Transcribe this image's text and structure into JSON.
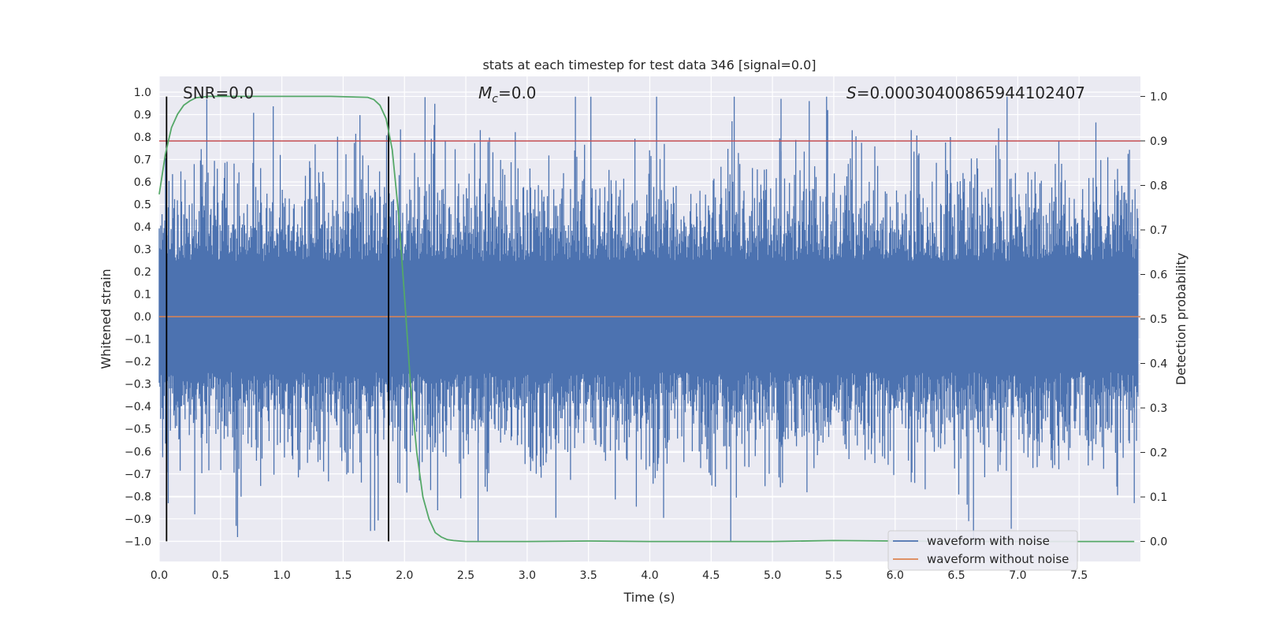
{
  "chart_data": {
    "type": "line",
    "title": "stats at each timestep for test data 346 [signal=0.0]",
    "xlabel": "Time (s)",
    "ylabel_left": "Whitened strain",
    "ylabel_right": "Detection probability",
    "xlim": [
      0.0,
      8.0
    ],
    "ylim_left": [
      -1.09,
      1.07
    ],
    "ylim_right": [
      -0.045,
      1.045
    ],
    "x_ticks": [
      "0.0",
      "0.5",
      "1.0",
      "1.5",
      "2.0",
      "2.5",
      "3.0",
      "3.5",
      "4.0",
      "4.5",
      "5.0",
      "5.5",
      "6.0",
      "6.5",
      "7.0",
      "7.5"
    ],
    "y_left_ticks": [
      "1.0",
      "0.9",
      "0.8",
      "0.7",
      "0.6",
      "0.5",
      "0.4",
      "0.3",
      "0.2",
      "0.1",
      "0.0",
      "-0.1",
      "-0.2",
      "-0.3",
      "-0.4",
      "-0.5",
      "-0.6",
      "-0.7",
      "-0.8",
      "-0.9",
      "-1.0"
    ],
    "y_right_ticks": [
      "1.0",
      "0.9",
      "0.8",
      "0.7",
      "0.6",
      "0.5",
      "0.4",
      "0.3",
      "0.2",
      "0.1",
      "0.0"
    ],
    "annotations": {
      "snr": "SNR=0.0",
      "mc": "M",
      "mc_sub": "c",
      "mc_value": "=0.0",
      "s_sym": "S",
      "s_value": "=0.00030400865944102407"
    },
    "threshold_right": 0.9,
    "vertical_markers_x": [
      0.06,
      1.87
    ],
    "series": [
      {
        "name": "waveform with noise",
        "color": "#4c72b0",
        "kind": "noise",
        "sample_rate": 1024,
        "envelope_typical": 0.45,
        "peak_max": 0.98,
        "peak_min": -1.0
      },
      {
        "name": "waveform without noise",
        "color": "#dd8452",
        "values_constant": 0.0
      },
      {
        "name": "detection probability",
        "color": "#55a868",
        "axis": "right",
        "x": [
          0.0,
          0.05,
          0.1,
          0.15,
          0.2,
          0.25,
          0.3,
          0.4,
          0.6,
          1.0,
          1.4,
          1.7,
          1.75,
          1.8,
          1.85,
          1.9,
          1.95,
          2.0,
          2.05,
          2.1,
          2.15,
          2.2,
          2.25,
          2.3,
          2.35,
          2.4,
          2.5,
          2.7,
          3.0,
          3.5,
          4.0,
          4.5,
          5.0,
          5.5,
          6.0,
          6.5,
          7.0,
          7.5,
          7.95
        ],
        "values": [
          0.78,
          0.87,
          0.93,
          0.96,
          0.98,
          0.99,
          0.997,
          1.0,
          1.0,
          1.0,
          1.0,
          0.998,
          0.993,
          0.98,
          0.95,
          0.88,
          0.74,
          0.55,
          0.35,
          0.2,
          0.1,
          0.05,
          0.02,
          0.01,
          0.004,
          0.002,
          0.0,
          0.0,
          0.0,
          0.001,
          0.0,
          0.0,
          0.0,
          0.002,
          0.001,
          0.0,
          0.0,
          0.0,
          0.0
        ]
      }
    ]
  },
  "legend": {
    "items": [
      {
        "label": "waveform with noise",
        "color": "#4c72b0"
      },
      {
        "label": "waveform without noise",
        "color": "#dd8452"
      }
    ]
  },
  "colors": {
    "axes_bg": "#eaeaf2",
    "grid": "#ffffff",
    "threshold": "#c44e52",
    "marker": "#000000"
  }
}
